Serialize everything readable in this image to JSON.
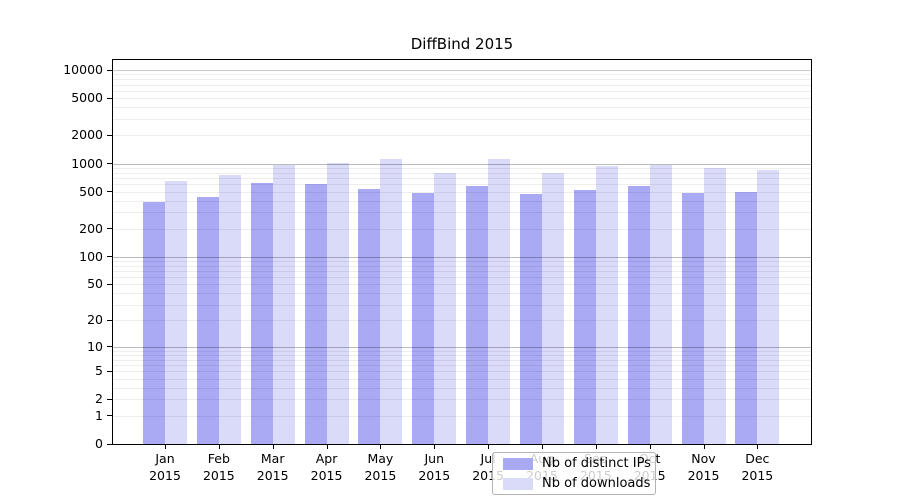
{
  "title": "DiffBind 2015",
  "chart_data": {
    "type": "bar",
    "title": "DiffBind 2015",
    "categories": [
      "Jan",
      "Feb",
      "Mar",
      "Apr",
      "May",
      "Jun",
      "Jul",
      "Aug",
      "Sep",
      "Oct",
      "Nov",
      "Dec"
    ],
    "x_year_label": "2015",
    "series": [
      {
        "name": "Nb of distinct IPs",
        "color": "#a9a9f4",
        "values": [
          390,
          435,
          620,
          605,
          540,
          480,
          580,
          470,
          525,
          580,
          485,
          495
        ]
      },
      {
        "name": "Nb of downloads",
        "color": "#dadaf9",
        "values": [
          645,
          750,
          960,
          1010,
          1130,
          785,
          1130,
          790,
          935,
          975,
          895,
          860
        ]
      }
    ],
    "y_scale": "log10(v+1)",
    "y_ticks": [
      0,
      1,
      2,
      5,
      10,
      20,
      50,
      100,
      200,
      500,
      1000,
      2000,
      5000,
      10000
    ],
    "ylim": [
      0,
      10000
    ],
    "xlabel": "",
    "ylabel": "",
    "grid": "log minor + major decades, horizontal only",
    "legend_position": "bottom-center-inside",
    "colors": {
      "major_grid": "#c9c9c9",
      "minor_grid": "#ededed",
      "axis": "#000000"
    }
  }
}
